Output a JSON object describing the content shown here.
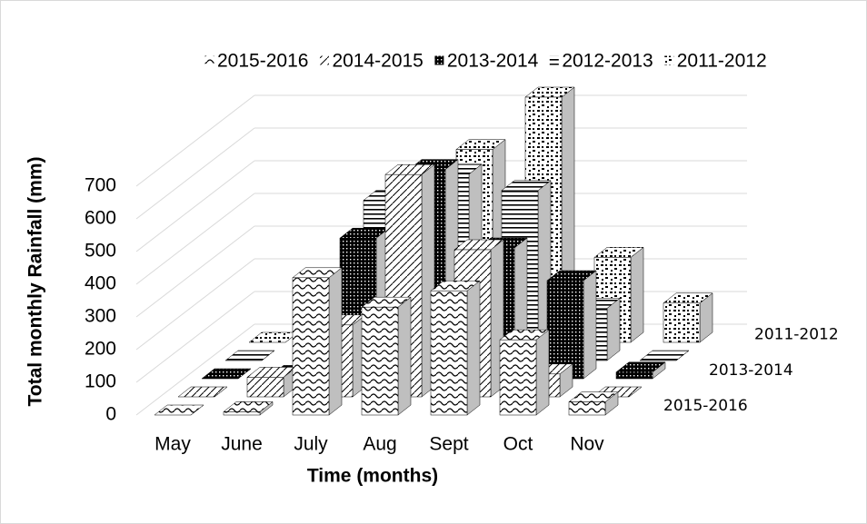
{
  "chart_data": {
    "type": "bar3d",
    "x_label": "Time (months)",
    "y_label": "Total monthly Rainfall (mm)",
    "categories": [
      "May",
      "June",
      "July",
      "Aug",
      "Sept",
      "Oct",
      "Nov"
    ],
    "series": [
      {
        "name": "2015-2016",
        "color": "#000000",
        "pattern": "wave",
        "values": [
          0,
          10,
          420,
          330,
          380,
          230,
          40
        ]
      },
      {
        "name": "2014-2015",
        "color": "#000000",
        "pattern": "diagonal",
        "values": [
          0,
          60,
          220,
          680,
          450,
          70,
          0
        ]
      },
      {
        "name": "2013-2014",
        "color": "#000000",
        "pattern": "dots",
        "values": [
          0,
          10,
          430,
          640,
          400,
          300,
          20
        ]
      },
      {
        "name": "2012-2013",
        "color": "#000000",
        "pattern": "hlines",
        "values": [
          0,
          0,
          490,
          570,
          520,
          160,
          0
        ]
      },
      {
        "name": "2011-2012",
        "color": "#000000",
        "pattern": "confetti",
        "values": [
          0,
          60,
          0,
          590,
          750,
          260,
          120
        ]
      }
    ],
    "ylim": [
      0,
      700
    ],
    "yticks": [
      0,
      100,
      200,
      300,
      400,
      500,
      600,
      700
    ],
    "grid": true,
    "legend": "top"
  }
}
